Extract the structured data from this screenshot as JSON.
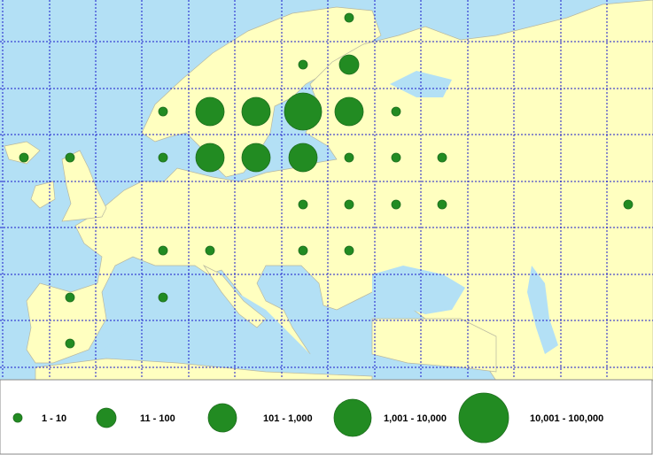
{
  "legend": {
    "classes": [
      "1 - 10",
      "11 - 100",
      "101 - 1,000",
      "1,001 - 10,000",
      "10,001 - 100,000"
    ]
  }
}
